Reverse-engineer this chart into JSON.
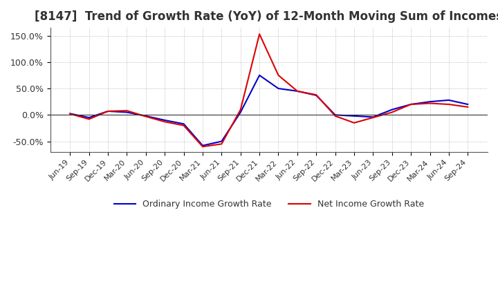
{
  "title": "[8147]  Trend of Growth Rate (YoY) of 12-Month Moving Sum of Incomes",
  "title_fontsize": 12,
  "ylim": [
    -70,
    165
  ],
  "yticks": [
    -50.0,
    0.0,
    50.0,
    100.0,
    150.0
  ],
  "ytick_labels": [
    "-50.0%",
    "0.0%",
    "50.0%",
    "100.0%",
    "150.0%"
  ],
  "background_color": "#ffffff",
  "plot_bg_color": "#ffffff",
  "grid_color": "#aaaaaa",
  "ordinary_color": "#0000cc",
  "net_color": "#dd0000",
  "legend_labels": [
    "Ordinary Income Growth Rate",
    "Net Income Growth Rate"
  ],
  "x_labels": [
    "Jun-19",
    "Sep-19",
    "Dec-19",
    "Mar-20",
    "Jun-20",
    "Sep-20",
    "Dec-20",
    "Mar-21",
    "Jun-21",
    "Sep-21",
    "Dec-21",
    "Mar-22",
    "Jun-22",
    "Sep-22",
    "Dec-22",
    "Mar-23",
    "Jun-23",
    "Sep-23",
    "Dec-23",
    "Mar-24",
    "Jun-24",
    "Sep-24"
  ],
  "ordinary_income_growth": [
    2.5,
    -5.0,
    7.0,
    5.0,
    -2.0,
    -10.0,
    -17.0,
    -58.0,
    -50.0,
    5.0,
    75.0,
    50.0,
    45.0,
    37.0,
    0.0,
    -2.0,
    -4.0,
    10.0,
    20.0,
    25.0,
    28.0,
    20.0
  ],
  "net_income_growth": [
    2.0,
    -8.0,
    7.0,
    8.0,
    -3.0,
    -13.0,
    -20.0,
    -60.0,
    -55.0,
    10.0,
    153.0,
    75.0,
    45.0,
    38.0,
    -2.0,
    -15.0,
    -5.0,
    5.0,
    20.0,
    22.0,
    20.0,
    15.0
  ]
}
